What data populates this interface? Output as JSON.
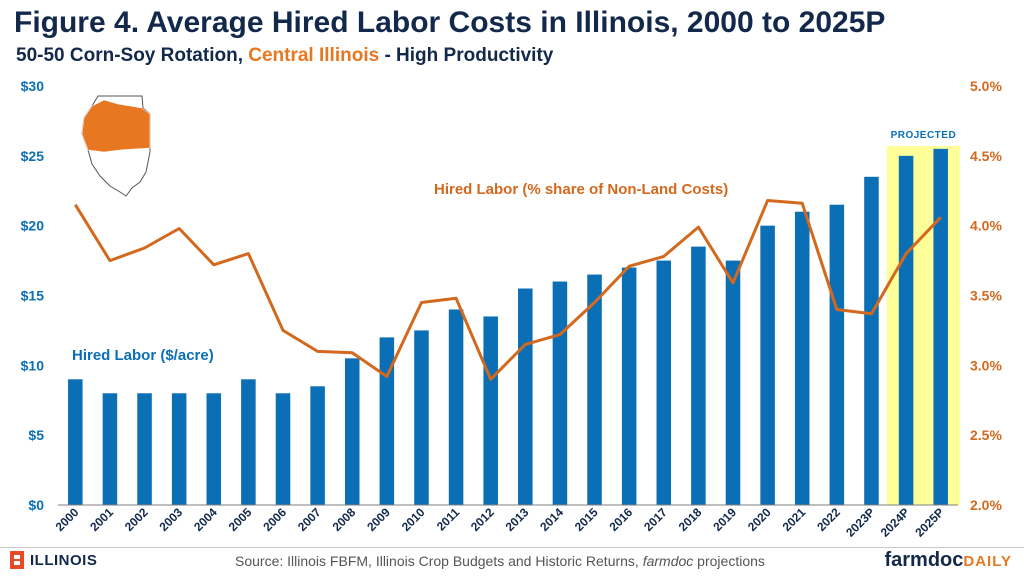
{
  "title": "Figure 4. Average Hired Labor Costs in Illinois, 2000 to 2025P",
  "subtitle": {
    "part1": "50-50 Corn-Soy Rotation, ",
    "part2": "Central Illinois",
    "part3": " - High Productivity"
  },
  "source": {
    "prefix": "Source: Illinois FBFM, Illinois Crop Budgets and Historic Returns, ",
    "italic": "farmdoc",
    "suffix": " projections"
  },
  "logo_left": "ILLINOIS",
  "logo_right": {
    "main": "farmdoc",
    "accent": "DAILY"
  },
  "colors": {
    "bar": "#0B6FB6",
    "line": "#D2691E",
    "projected_band": "#FFFF99",
    "title": "#13294B",
    "accent": "#E87722",
    "map_fill": "#E87722"
  },
  "icons": {
    "map": "illinois-map-icon",
    "logo_left": "block-i-icon"
  },
  "chart_data": {
    "type": "bar",
    "categories": [
      "2000",
      "2001",
      "2002",
      "2003",
      "2004",
      "2005",
      "2006",
      "2007",
      "2008",
      "2009",
      "2010",
      "2011",
      "2012",
      "2013",
      "2014",
      "2015",
      "2016",
      "2017",
      "2018",
      "2019",
      "2020",
      "2021",
      "2022",
      "2023P",
      "2024P",
      "2025P"
    ],
    "series": [
      {
        "name": "Hired Labor ($/acre)",
        "type": "bar",
        "axis": "left",
        "values": [
          9,
          8,
          8,
          8,
          8,
          9,
          8,
          8.5,
          10.5,
          12,
          12.5,
          14,
          13.5,
          15.5,
          16,
          16.5,
          17,
          17.5,
          18.5,
          17.5,
          20,
          21,
          21.5,
          23.5,
          25,
          25.5
        ]
      },
      {
        "name": "Hired Labor (% share of Non-Land Costs)",
        "type": "line",
        "axis": "right",
        "values": [
          4.15,
          3.75,
          3.84,
          3.98,
          3.72,
          3.8,
          3.25,
          3.1,
          3.09,
          2.92,
          3.45,
          3.48,
          2.9,
          3.15,
          3.22,
          3.45,
          3.71,
          3.78,
          3.99,
          3.59,
          4.18,
          4.16,
          3.4,
          3.37,
          3.8,
          4.06
        ]
      }
    ],
    "y_left": {
      "min": 0,
      "max": 30,
      "ticks": [
        "$0",
        "$5",
        "$10",
        "$15",
        "$20",
        "$25",
        "$30"
      ]
    },
    "y_right": {
      "min": 2.0,
      "max": 5.0,
      "ticks": [
        "2.0%",
        "2.5%",
        "3.0%",
        "3.5%",
        "4.0%",
        "4.5%",
        "5.0%"
      ]
    },
    "projected_label": "PROJECTED",
    "projected_categories": [
      "2024P",
      "2025P"
    ],
    "grid": false
  }
}
